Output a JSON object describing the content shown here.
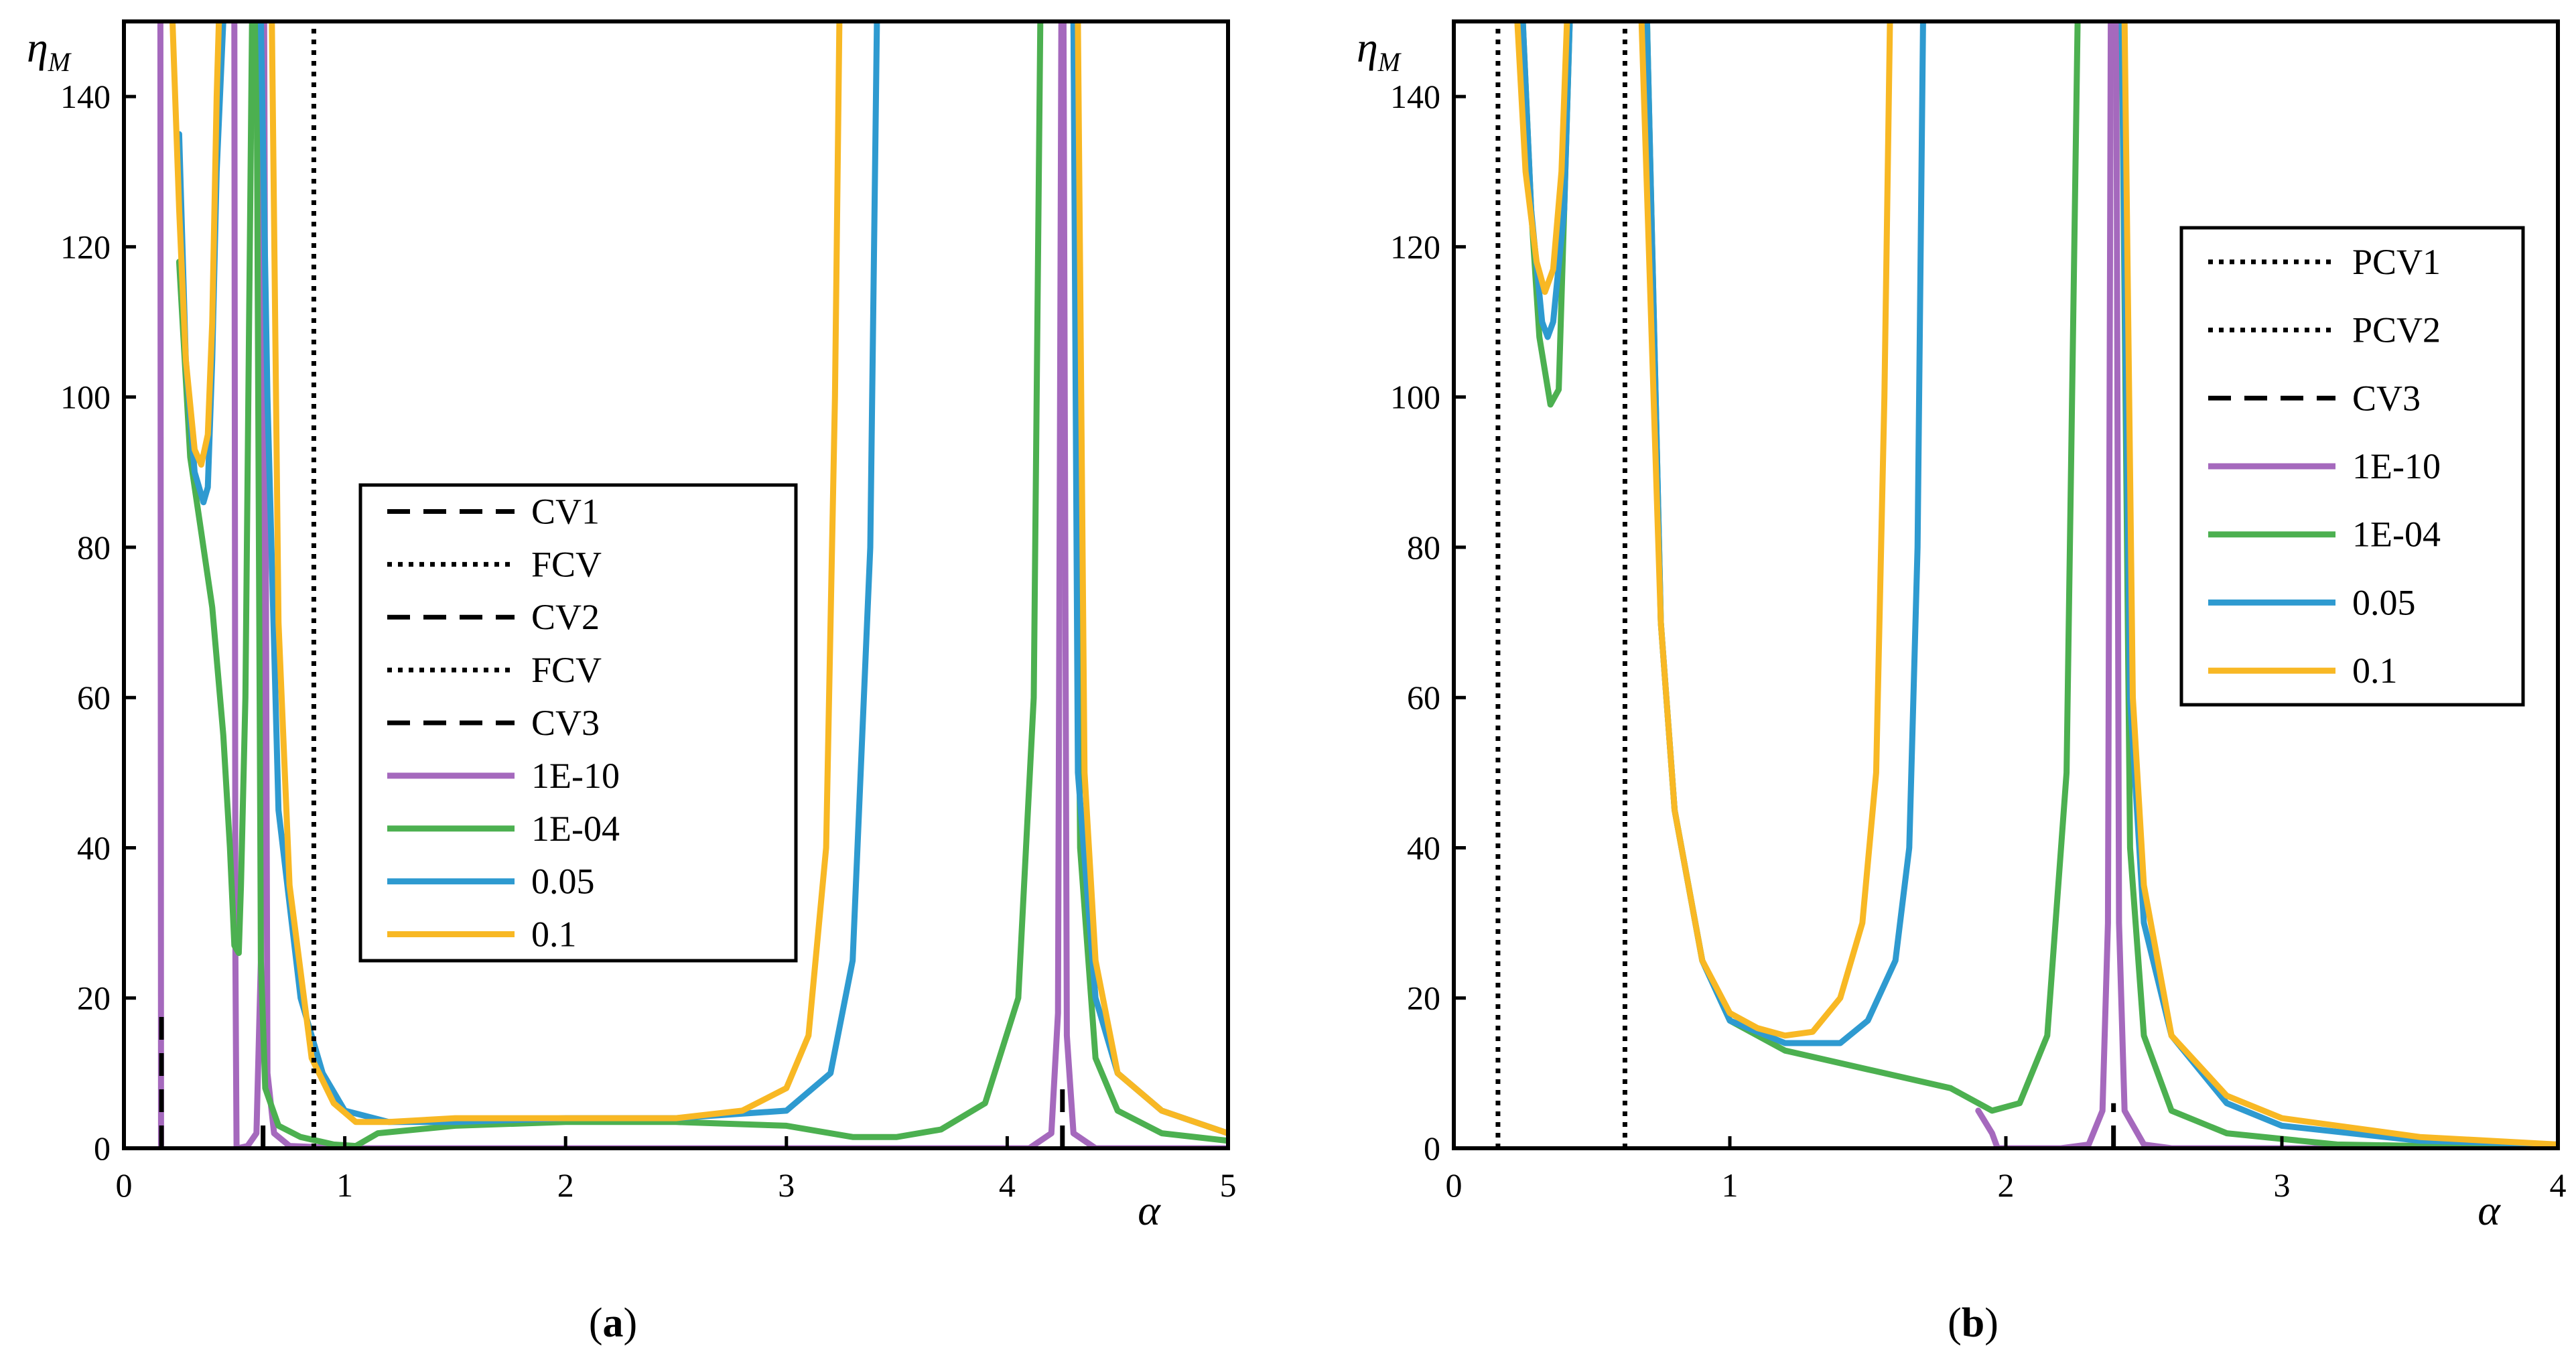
{
  "chart_data": [
    {
      "type": "line",
      "panel_label": "a",
      "xlabel": "α",
      "ylabel": "η",
      "ylabel_subscript": "M",
      "xlim": [
        0,
        5
      ],
      "ylim": [
        0,
        150
      ],
      "x_ticks": [
        0,
        1,
        2,
        3,
        4,
        5
      ],
      "y_ticks": [
        0,
        20,
        40,
        60,
        80,
        100,
        120,
        140
      ],
      "legend_position": "center",
      "vlines": [
        {
          "name": "CV1",
          "x": 0.17,
          "style": "dashed",
          "color": "#000000",
          "ymax": 18
        },
        {
          "name": "FCV",
          "x": 0.86,
          "style": "dotted",
          "color": "#000000",
          "ymax": 150
        },
        {
          "name": "CV2",
          "x": 0.63,
          "style": "dashed",
          "color": "#000000",
          "ymax": 4
        },
        {
          "name": "FCV",
          "x": 0.86,
          "style": "dotted",
          "color": "#000000",
          "ymax": 150
        },
        {
          "name": "CV3",
          "x": 4.25,
          "style": "dashed",
          "color": "#000000",
          "ymax": 8
        }
      ],
      "series": [
        {
          "name": "1E-10",
          "color": "#A569BD",
          "segments": [
            [
              [
                0.165,
                150
              ],
              [
                0.168,
                0
              ]
            ],
            [
              [
                0.5,
                150
              ],
              [
                0.505,
                25
              ],
              [
                0.51,
                0
              ]
            ],
            [
              [
                0.515,
                0
              ],
              [
                0.56,
                0.3
              ],
              [
                0.6,
                2
              ],
              [
                0.62,
                25
              ],
              [
                0.625,
                150
              ]
            ],
            [
              [
                0.635,
                150
              ],
              [
                0.65,
                10
              ],
              [
                0.68,
                2
              ],
              [
                0.75,
                0.3
              ],
              [
                1.0,
                0
              ],
              [
                4.1,
                0
              ],
              [
                4.2,
                2
              ],
              [
                4.23,
                18
              ],
              [
                4.245,
                150
              ]
            ],
            [
              [
                4.255,
                150
              ],
              [
                4.27,
                15
              ],
              [
                4.3,
                2
              ],
              [
                4.4,
                0
              ],
              [
                5.0,
                0
              ]
            ]
          ]
        },
        {
          "name": "1E-04",
          "color": "#4CB050",
          "segments": [
            [
              [
                0.25,
                118
              ],
              [
                0.3,
                92
              ],
              [
                0.35,
                82
              ],
              [
                0.4,
                72
              ],
              [
                0.45,
                55
              ],
              [
                0.48,
                40
              ],
              [
                0.5,
                27
              ],
              [
                0.52,
                26
              ],
              [
                0.53,
                35
              ],
              [
                0.55,
                60
              ],
              [
                0.58,
                150
              ]
            ],
            [
              [
                0.6,
                150
              ],
              [
                0.62,
                25
              ],
              [
                0.64,
                8
              ],
              [
                0.7,
                3
              ],
              [
                0.8,
                1.5
              ],
              [
                0.95,
                0.5
              ],
              [
                1.05,
                0.3
              ],
              [
                1.15,
                2
              ],
              [
                1.5,
                3
              ],
              [
                2.0,
                3.5
              ],
              [
                2.5,
                3.5
              ],
              [
                3.0,
                3
              ],
              [
                3.3,
                1.5
              ],
              [
                3.5,
                1.5
              ],
              [
                3.7,
                2.5
              ],
              [
                3.9,
                6
              ],
              [
                4.05,
                20
              ],
              [
                4.12,
                60
              ],
              [
                4.15,
                150
              ]
            ],
            [
              [
                4.3,
                150
              ],
              [
                4.33,
                40
              ],
              [
                4.4,
                12
              ],
              [
                4.5,
                5
              ],
              [
                4.7,
                2
              ],
              [
                5.0,
                1
              ]
            ]
          ]
        },
        {
          "name": "0.05",
          "color": "#2E9AD0",
          "segments": [
            [
              [
                0.25,
                135
              ],
              [
                0.28,
                105
              ],
              [
                0.32,
                90
              ],
              [
                0.36,
                86
              ],
              [
                0.38,
                88
              ],
              [
                0.4,
                105
              ],
              [
                0.42,
                130
              ],
              [
                0.45,
                150
              ]
            ],
            [
              [
                0.62,
                150
              ],
              [
                0.65,
                100
              ],
              [
                0.7,
                45
              ],
              [
                0.8,
                20
              ],
              [
                0.9,
                10
              ],
              [
                1.0,
                5
              ],
              [
                1.2,
                3.5
              ],
              [
                1.5,
                3.5
              ],
              [
                2.0,
                4
              ],
              [
                2.5,
                4
              ],
              [
                3.0,
                5
              ],
              [
                3.2,
                10
              ],
              [
                3.3,
                25
              ],
              [
                3.38,
                80
              ],
              [
                3.41,
                150
              ]
            ],
            [
              [
                4.3,
                150
              ],
              [
                4.32,
                50
              ],
              [
                4.4,
                20
              ],
              [
                4.5,
                10
              ],
              [
                4.7,
                5
              ],
              [
                5.0,
                2
              ]
            ]
          ]
        },
        {
          "name": "0.1",
          "color": "#F8B824",
          "segments": [
            [
              [
                0.22,
                150
              ],
              [
                0.25,
                125
              ],
              [
                0.28,
                105
              ],
              [
                0.32,
                93
              ],
              [
                0.35,
                91
              ],
              [
                0.38,
                95
              ],
              [
                0.4,
                110
              ],
              [
                0.42,
                140
              ],
              [
                0.43,
                150
              ]
            ],
            [
              [
                0.67,
                150
              ],
              [
                0.7,
                70
              ],
              [
                0.75,
                35
              ],
              [
                0.85,
                12
              ],
              [
                0.95,
                6
              ],
              [
                1.05,
                3.5
              ],
              [
                1.2,
                3.5
              ],
              [
                1.5,
                4
              ],
              [
                2.0,
                4
              ],
              [
                2.5,
                4
              ],
              [
                2.8,
                5
              ],
              [
                3.0,
                8
              ],
              [
                3.1,
                15
              ],
              [
                3.18,
                40
              ],
              [
                3.22,
                100
              ],
              [
                3.24,
                150
              ]
            ],
            [
              [
                4.32,
                150
              ],
              [
                4.35,
                50
              ],
              [
                4.4,
                25
              ],
              [
                4.5,
                10
              ],
              [
                4.7,
                5
              ],
              [
                5.0,
                2
              ]
            ]
          ]
        }
      ]
    },
    {
      "type": "line",
      "panel_label": "b",
      "xlabel": "α",
      "ylabel": "η",
      "ylabel_subscript": "M",
      "xlim": [
        0,
        4
      ],
      "ylim": [
        0,
        150
      ],
      "x_ticks": [
        0,
        1,
        2,
        3,
        4
      ],
      "y_ticks": [
        0,
        20,
        40,
        60,
        80,
        100,
        120,
        140
      ],
      "legend_position": "top-right",
      "vlines": [
        {
          "name": "PCV1",
          "x": 0.16,
          "style": "dotted",
          "color": "#000000",
          "ymax": 150
        },
        {
          "name": "PCV2",
          "x": 0.62,
          "style": "dotted",
          "color": "#000000",
          "ymax": 150
        },
        {
          "name": "CV3",
          "x": 2.39,
          "style": "dashed",
          "color": "#000000",
          "ymax": 6
        }
      ],
      "series": [
        {
          "name": "1E-10",
          "color": "#A569BD",
          "segments": [
            [
              [
                1.9,
                5
              ],
              [
                1.95,
                2
              ],
              [
                1.97,
                0
              ],
              [
                2.2,
                0
              ],
              [
                2.3,
                0.5
              ],
              [
                2.35,
                5
              ],
              [
                2.37,
                30
              ],
              [
                2.38,
                150
              ]
            ],
            [
              [
                2.4,
                150
              ],
              [
                2.41,
                30
              ],
              [
                2.43,
                5
              ],
              [
                2.5,
                0.5
              ],
              [
                2.6,
                0
              ],
              [
                4.0,
                0
              ]
            ]
          ]
        },
        {
          "name": "1E-04",
          "color": "#4CB050",
          "segments": [
            [
              [
                0.25,
                150
              ],
              [
                0.28,
                125
              ],
              [
                0.31,
                108
              ],
              [
                0.35,
                99
              ],
              [
                0.38,
                101
              ],
              [
                0.4,
                125
              ],
              [
                0.42,
                150
              ]
            ],
            [
              [
                0.7,
                150
              ],
              [
                0.75,
                70
              ],
              [
                0.8,
                45
              ],
              [
                0.9,
                25
              ],
              [
                1.0,
                17
              ],
              [
                1.2,
                13
              ],
              [
                1.5,
                10.5
              ],
              [
                1.8,
                8
              ],
              [
                1.95,
                5
              ],
              [
                2.05,
                6
              ],
              [
                2.15,
                15
              ],
              [
                2.22,
                50
              ],
              [
                2.26,
                150
              ]
            ],
            [
              [
                2.42,
                150
              ],
              [
                2.45,
                40
              ],
              [
                2.5,
                15
              ],
              [
                2.6,
                5
              ],
              [
                2.8,
                2
              ],
              [
                3.2,
                0.5
              ],
              [
                4.0,
                0
              ]
            ]
          ]
        },
        {
          "name": "0.05",
          "color": "#2E9AD0",
          "segments": [
            [
              [
                0.25,
                150
              ],
              [
                0.28,
                125
              ],
              [
                0.32,
                110
              ],
              [
                0.34,
                108
              ],
              [
                0.36,
                110
              ],
              [
                0.4,
                125
              ],
              [
                0.42,
                150
              ]
            ],
            [
              [
                0.7,
                150
              ],
              [
                0.75,
                70
              ],
              [
                0.8,
                45
              ],
              [
                0.9,
                25
              ],
              [
                1.0,
                17
              ],
              [
                1.2,
                14
              ],
              [
                1.4,
                14
              ],
              [
                1.5,
                17
              ],
              [
                1.6,
                25
              ],
              [
                1.65,
                40
              ],
              [
                1.68,
                80
              ],
              [
                1.7,
                150
              ]
            ],
            [
              [
                2.42,
                150
              ],
              [
                2.45,
                60
              ],
              [
                2.5,
                30
              ],
              [
                2.6,
                15
              ],
              [
                2.8,
                6
              ],
              [
                3.0,
                3
              ],
              [
                3.5,
                1
              ],
              [
                4.0,
                0.5
              ]
            ]
          ]
        },
        {
          "name": "0.1",
          "color": "#F8B824",
          "segments": [
            [
              [
                0.23,
                150
              ],
              [
                0.26,
                130
              ],
              [
                0.3,
                118
              ],
              [
                0.33,
                114
              ],
              [
                0.36,
                117
              ],
              [
                0.39,
                130
              ],
              [
                0.41,
                150
              ]
            ],
            [
              [
                0.68,
                150
              ],
              [
                0.75,
                70
              ],
              [
                0.8,
                45
              ],
              [
                0.9,
                25
              ],
              [
                1.0,
                18
              ],
              [
                1.1,
                16
              ],
              [
                1.2,
                15
              ],
              [
                1.3,
                15.5
              ],
              [
                1.4,
                20
              ],
              [
                1.48,
                30
              ],
              [
                1.53,
                50
              ],
              [
                1.56,
                100
              ],
              [
                1.58,
                150
              ]
            ],
            [
              [
                2.43,
                150
              ],
              [
                2.46,
                60
              ],
              [
                2.5,
                35
              ],
              [
                2.6,
                15
              ],
              [
                2.8,
                7
              ],
              [
                3.0,
                4
              ],
              [
                3.5,
                1.5
              ],
              [
                4.0,
                0.5
              ]
            ]
          ]
        }
      ]
    }
  ]
}
